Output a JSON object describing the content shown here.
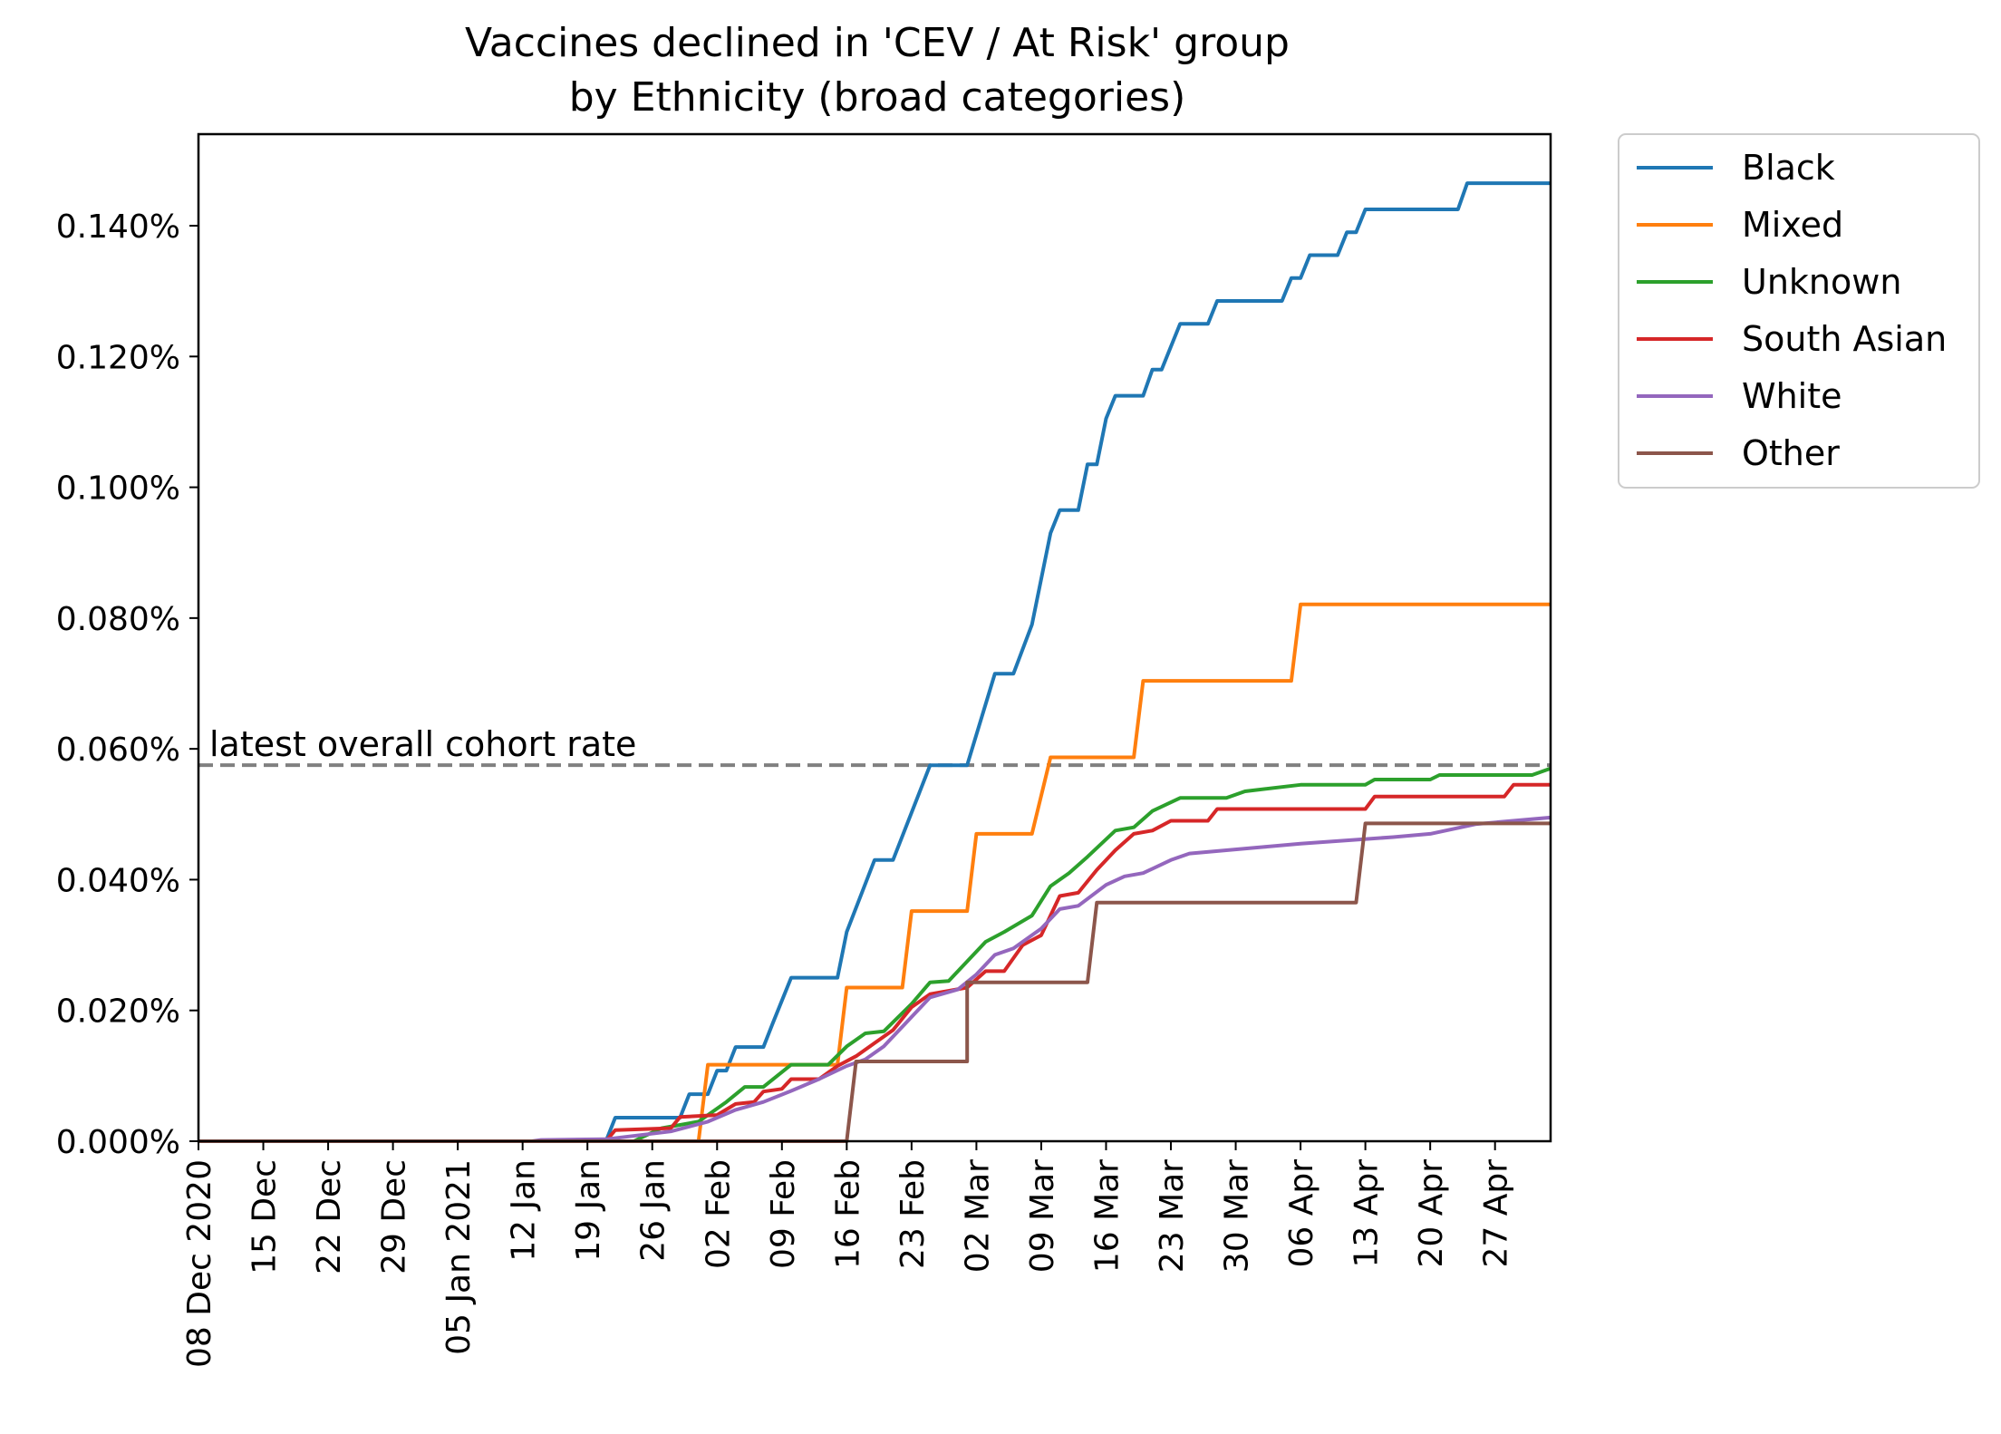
{
  "chart_data": {
    "type": "line",
    "title": "Vaccines declined in 'CEV / At Risk' group",
    "subtitle": "by Ethnicity (broad categories)",
    "xlabel": "",
    "ylabel": "",
    "x_axis": {
      "type": "date",
      "range": [
        "2020-12-08",
        "2021-05-03"
      ],
      "tick_labels": [
        {
          "date": "2020-12-08",
          "label": "08 Dec 2020"
        },
        {
          "date": "2020-12-15",
          "label": "15 Dec"
        },
        {
          "date": "2020-12-22",
          "label": "22 Dec"
        },
        {
          "date": "2020-12-29",
          "label": "29 Dec"
        },
        {
          "date": "2021-01-05",
          "label": "05 Jan 2021"
        },
        {
          "date": "2021-01-12",
          "label": "12 Jan"
        },
        {
          "date": "2021-01-19",
          "label": "19 Jan"
        },
        {
          "date": "2021-01-26",
          "label": "26 Jan"
        },
        {
          "date": "2021-02-02",
          "label": "02 Feb"
        },
        {
          "date": "2021-02-09",
          "label": "09 Feb"
        },
        {
          "date": "2021-02-16",
          "label": "16 Feb"
        },
        {
          "date": "2021-02-23",
          "label": "23 Feb"
        },
        {
          "date": "2021-03-02",
          "label": "02 Mar"
        },
        {
          "date": "2021-03-09",
          "label": "09 Mar"
        },
        {
          "date": "2021-03-16",
          "label": "16 Mar"
        },
        {
          "date": "2021-03-23",
          "label": "23 Mar"
        },
        {
          "date": "2021-03-30",
          "label": "30 Mar"
        },
        {
          "date": "2021-04-06",
          "label": "06 Apr"
        },
        {
          "date": "2021-04-13",
          "label": "13 Apr"
        },
        {
          "date": "2021-04-20",
          "label": "20 Apr"
        },
        {
          "date": "2021-04-27",
          "label": "27 Apr"
        }
      ]
    },
    "y_axis": {
      "unit": "percent",
      "range": [
        0,
        0.154
      ],
      "ticks": [
        0,
        0.02,
        0.04,
        0.06,
        0.08,
        0.1,
        0.12,
        0.14
      ],
      "tick_labels": [
        "0.000%",
        "0.020%",
        "0.040%",
        "0.060%",
        "0.080%",
        "0.100%",
        "0.120%",
        "0.140%"
      ]
    },
    "grid": false,
    "legend": {
      "placement": "outside-top-right"
    },
    "reference_line": {
      "label": "latest overall cohort rate",
      "value": 0.0575,
      "color": "#808080",
      "style": "dashed"
    },
    "series": [
      {
        "name": "Black",
        "color": "#1f77b4",
        "points": [
          [
            "2020-12-08",
            0
          ],
          [
            "2021-01-21",
            0
          ],
          [
            "2021-01-22",
            0.0036
          ],
          [
            "2021-01-29",
            0.0036
          ],
          [
            "2021-01-30",
            0.0072
          ],
          [
            "2021-02-01",
            0.0072
          ],
          [
            "2021-02-02",
            0.0108
          ],
          [
            "2021-02-03",
            0.0108
          ],
          [
            "2021-02-04",
            0.0144
          ],
          [
            "2021-02-07",
            0.0144
          ],
          [
            "2021-02-08",
            0.018
          ],
          [
            "2021-02-10",
            0.025
          ],
          [
            "2021-02-15",
            0.025
          ],
          [
            "2021-02-16",
            0.032
          ],
          [
            "2021-02-19",
            0.043
          ],
          [
            "2021-02-21",
            0.043
          ],
          [
            "2021-02-25",
            0.0575
          ],
          [
            "2021-03-01",
            0.0575
          ],
          [
            "2021-03-04",
            0.0715
          ],
          [
            "2021-03-06",
            0.0715
          ],
          [
            "2021-03-08",
            0.079
          ],
          [
            "2021-03-10",
            0.093
          ],
          [
            "2021-03-11",
            0.0965
          ],
          [
            "2021-03-13",
            0.0965
          ],
          [
            "2021-03-14",
            0.1035
          ],
          [
            "2021-03-15",
            0.1035
          ],
          [
            "2021-03-16",
            0.1105
          ],
          [
            "2021-03-17",
            0.114
          ],
          [
            "2021-03-20",
            0.114
          ],
          [
            "2021-03-21",
            0.118
          ],
          [
            "2021-03-22",
            0.118
          ],
          [
            "2021-03-24",
            0.125
          ],
          [
            "2021-03-27",
            0.125
          ],
          [
            "2021-03-28",
            0.1285
          ],
          [
            "2021-04-04",
            0.1285
          ],
          [
            "2021-04-05",
            0.132
          ],
          [
            "2021-04-06",
            0.132
          ],
          [
            "2021-04-07",
            0.1355
          ],
          [
            "2021-04-10",
            0.1355
          ],
          [
            "2021-04-11",
            0.139
          ],
          [
            "2021-04-12",
            0.139
          ],
          [
            "2021-04-13",
            0.1425
          ],
          [
            "2021-04-23",
            0.1425
          ],
          [
            "2021-04-24",
            0.1465
          ],
          [
            "2021-05-03",
            0.1465
          ]
        ]
      },
      {
        "name": "Mixed",
        "color": "#ff7f0e",
        "points": [
          [
            "2020-12-08",
            0
          ],
          [
            "2021-01-31",
            0
          ],
          [
            "2021-02-01",
            0.0117
          ],
          [
            "2021-02-15",
            0.0117
          ],
          [
            "2021-02-16",
            0.0235
          ],
          [
            "2021-02-22",
            0.0235
          ],
          [
            "2021-02-23",
            0.0352
          ],
          [
            "2021-02-29",
            0.0352
          ],
          [
            "2021-03-02",
            0.047
          ],
          [
            "2021-03-08",
            0.047
          ],
          [
            "2021-03-10",
            0.0587
          ],
          [
            "2021-03-19",
            0.0587
          ],
          [
            "2021-03-20",
            0.0704
          ],
          [
            "2021-04-05",
            0.0704
          ],
          [
            "2021-04-06",
            0.0821
          ],
          [
            "2021-05-03",
            0.0821
          ]
        ]
      },
      {
        "name": "Unknown",
        "color": "#2ca02c",
        "points": [
          [
            "2020-12-08",
            0
          ],
          [
            "2021-01-24",
            0
          ],
          [
            "2021-01-27",
            0.002
          ],
          [
            "2021-01-31",
            0.003
          ],
          [
            "2021-02-03",
            0.006
          ],
          [
            "2021-02-05",
            0.0083
          ],
          [
            "2021-02-07",
            0.0083
          ],
          [
            "2021-02-10",
            0.0117
          ],
          [
            "2021-02-14",
            0.0117
          ],
          [
            "2021-02-16",
            0.0145
          ],
          [
            "2021-02-18",
            0.0165
          ],
          [
            "2021-02-20",
            0.0168
          ],
          [
            "2021-02-23",
            0.021
          ],
          [
            "2021-02-25",
            0.0243
          ],
          [
            "2021-02-27",
            0.0245
          ],
          [
            "2021-03-01",
            0.0275
          ],
          [
            "2021-03-03",
            0.0305
          ],
          [
            "2021-03-05",
            0.032
          ],
          [
            "2021-03-08",
            0.0345
          ],
          [
            "2021-03-10",
            0.039
          ],
          [
            "2021-03-12",
            0.041
          ],
          [
            "2021-03-14",
            0.0435
          ],
          [
            "2021-03-17",
            0.0475
          ],
          [
            "2021-03-19",
            0.048
          ],
          [
            "2021-03-21",
            0.0505
          ],
          [
            "2021-03-24",
            0.0525
          ],
          [
            "2021-03-29",
            0.0525
          ],
          [
            "2021-03-31",
            0.0535
          ],
          [
            "2021-04-06",
            0.0545
          ],
          [
            "2021-04-13",
            0.0545
          ],
          [
            "2021-04-14",
            0.0553
          ],
          [
            "2021-04-20",
            0.0553
          ],
          [
            "2021-04-21",
            0.056
          ],
          [
            "2021-05-01",
            0.056
          ],
          [
            "2021-05-03",
            0.057
          ]
        ]
      },
      {
        "name": "South Asian",
        "color": "#d62728",
        "points": [
          [
            "2020-12-08",
            0
          ],
          [
            "2021-01-21",
            0
          ],
          [
            "2021-01-22",
            0.0017
          ],
          [
            "2021-01-28",
            0.002
          ],
          [
            "2021-01-29",
            0.0037
          ],
          [
            "2021-02-02",
            0.004
          ],
          [
            "2021-02-04",
            0.0057
          ],
          [
            "2021-02-06",
            0.006
          ],
          [
            "2021-02-07",
            0.0076
          ],
          [
            "2021-02-09",
            0.008
          ],
          [
            "2021-02-10",
            0.0095
          ],
          [
            "2021-02-13",
            0.0095
          ],
          [
            "2021-02-15",
            0.0115
          ],
          [
            "2021-02-17",
            0.013
          ],
          [
            "2021-02-19",
            0.015
          ],
          [
            "2021-02-21",
            0.017
          ],
          [
            "2021-02-23",
            0.0205
          ],
          [
            "2021-02-25",
            0.0225
          ],
          [
            "2021-03-01",
            0.0235
          ],
          [
            "2021-03-03",
            0.026
          ],
          [
            "2021-03-05",
            0.026
          ],
          [
            "2021-03-07",
            0.03
          ],
          [
            "2021-03-09",
            0.0315
          ],
          [
            "2021-03-11",
            0.0375
          ],
          [
            "2021-03-13",
            0.038
          ],
          [
            "2021-03-15",
            0.0415
          ],
          [
            "2021-03-17",
            0.0445
          ],
          [
            "2021-03-19",
            0.047
          ],
          [
            "2021-03-21",
            0.0475
          ],
          [
            "2021-03-23",
            0.049
          ],
          [
            "2021-03-27",
            0.049
          ],
          [
            "2021-03-28",
            0.0508
          ],
          [
            "2021-04-06",
            0.0508
          ],
          [
            "2021-04-07",
            0.0508
          ],
          [
            "2021-04-13",
            0.0508
          ],
          [
            "2021-04-14",
            0.0527
          ],
          [
            "2021-04-28",
            0.0527
          ],
          [
            "2021-04-29",
            0.0545
          ],
          [
            "2021-05-03",
            0.0545
          ]
        ]
      },
      {
        "name": "White",
        "color": "#9467bd",
        "points": [
          [
            "2020-12-08",
            0
          ],
          [
            "2021-01-13",
            0
          ],
          [
            "2021-01-14",
            0.0002
          ],
          [
            "2021-01-21",
            0.0003
          ],
          [
            "2021-01-28",
            0.0015
          ],
          [
            "2021-02-01",
            0.003
          ],
          [
            "2021-02-04",
            0.0048
          ],
          [
            "2021-02-07",
            0.006
          ],
          [
            "2021-02-10",
            0.0077
          ],
          [
            "2021-02-13",
            0.0095
          ],
          [
            "2021-02-16",
            0.0115
          ],
          [
            "2021-02-18",
            0.0125
          ],
          [
            "2021-02-20",
            0.0145
          ],
          [
            "2021-02-23",
            0.019
          ],
          [
            "2021-02-25",
            0.022
          ],
          [
            "2021-02-28",
            0.0232
          ],
          [
            "2021-03-02",
            0.0255
          ],
          [
            "2021-03-04",
            0.0285
          ],
          [
            "2021-03-06",
            0.0295
          ],
          [
            "2021-03-09",
            0.0325
          ],
          [
            "2021-03-11",
            0.0355
          ],
          [
            "2021-03-13",
            0.036
          ],
          [
            "2021-03-16",
            0.0392
          ],
          [
            "2021-03-18",
            0.0405
          ],
          [
            "2021-03-20",
            0.041
          ],
          [
            "2021-03-23",
            0.043
          ],
          [
            "2021-03-25",
            0.044
          ],
          [
            "2021-03-29",
            0.0445
          ],
          [
            "2021-04-02",
            0.045
          ],
          [
            "2021-04-06",
            0.0455
          ],
          [
            "2021-04-11",
            0.046
          ],
          [
            "2021-04-16",
            0.0465
          ],
          [
            "2021-04-20",
            0.047
          ],
          [
            "2021-04-25",
            0.0485
          ],
          [
            "2021-05-03",
            0.0495
          ]
        ]
      },
      {
        "name": "Other",
        "color": "#8c564b",
        "points": [
          [
            "2020-12-08",
            0
          ],
          [
            "2021-02-16",
            0
          ],
          [
            "2021-02-17",
            0.0122
          ],
          [
            "2021-02-29",
            0.0122
          ],
          [
            "2021-03-01",
            0.0243
          ],
          [
            "2021-03-14",
            0.0243
          ],
          [
            "2021-03-15",
            0.0365
          ],
          [
            "2021-04-12",
            0.0365
          ],
          [
            "2021-04-13",
            0.0486
          ],
          [
            "2021-05-03",
            0.0486
          ]
        ]
      }
    ]
  }
}
